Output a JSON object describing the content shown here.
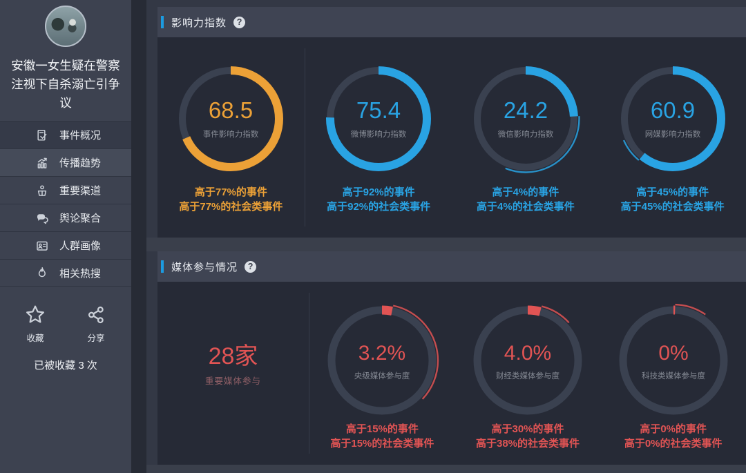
{
  "sidebar": {
    "event_title": "安徽一女生疑在警察注视下自杀溺亡引争议",
    "nav": [
      {
        "id": "event-overview",
        "label": "事件概况",
        "icon": "doc-edit-icon",
        "active": true,
        "hover": false
      },
      {
        "id": "spread-trend",
        "label": "传播趋势",
        "icon": "trend-chart-icon",
        "active": false,
        "hover": true
      },
      {
        "id": "key-channels",
        "label": "重要渠道",
        "icon": "podium-icon",
        "active": false,
        "hover": false
      },
      {
        "id": "opinion-cluster",
        "label": "舆论聚合",
        "icon": "speech-bubbles-icon",
        "active": false,
        "hover": false
      },
      {
        "id": "audience-profile",
        "label": "人群画像",
        "icon": "id-card-icon",
        "active": false,
        "hover": false
      },
      {
        "id": "related-hot-search",
        "label": "相关热搜",
        "icon": "flame-icon",
        "active": false,
        "hover": false
      }
    ],
    "actions": [
      {
        "id": "favorite",
        "label": "收藏",
        "icon": "star-icon"
      },
      {
        "id": "share",
        "label": "分享",
        "icon": "share-nodes-icon"
      }
    ],
    "favorite_count": "已被收藏 3 次"
  },
  "panels": [
    {
      "id": "influence-index",
      "title": "影响力指数",
      "help_glyph": "?"
    },
    {
      "id": "media-participation",
      "title": "媒体参与情况",
      "help_glyph": "?"
    }
  ],
  "colors": {
    "accent_blue": "#1c9be0",
    "gauge_orange": "#eca137",
    "gauge_blue": "#29a3e3",
    "gauge_red": "#e15454",
    "gauge_track": "#3a4150",
    "gauge_label": "#858a94"
  },
  "chart_data": [
    {
      "type": "gauge-ring",
      "panel": "影响力指数",
      "max": 100,
      "gauges": [
        {
          "id": "event-influence-index",
          "value": 68.5,
          "display": "68.5",
          "label": "事件影响力指数",
          "color": "#eca137",
          "decor_tail_deg": 0,
          "captions": [
            "高于77%的事件",
            "高于77%的社会类事件"
          ]
        },
        {
          "id": "weibo-influence-index",
          "value": 75.4,
          "display": "75.4",
          "label": "微博影响力指数",
          "color": "#29a3e3",
          "decor_tail_deg": 0,
          "captions": [
            "高于92%的事件",
            "高于92%的社会类事件"
          ]
        },
        {
          "id": "wechat-influence-index",
          "value": 24.2,
          "display": "24.2",
          "label": "微信影响力指数",
          "color": "#29a3e3",
          "decor_tail_deg": 115,
          "captions": [
            "高于4%的事件",
            "高于4%的社会类事件"
          ]
        },
        {
          "id": "webmedia-influence-index",
          "value": 60.9,
          "display": "60.9",
          "label": "网媒影响力指数",
          "color": "#29a3e3",
          "decor_tail_deg": 27,
          "captions": [
            "高于45%的事件",
            "高于45%的社会类事件"
          ]
        }
      ]
    },
    {
      "type": "gauge-ring",
      "panel": "媒体参与情况",
      "max": 100,
      "summary": {
        "value": "28家",
        "label": "重要媒体参与",
        "color": "#e15454"
      },
      "gauges": [
        {
          "id": "central-media-participation",
          "value": 3.2,
          "display": "3.2%",
          "label": "央级媒体参与度",
          "color": "#e15454",
          "decor_tail_deg": 122,
          "captions": [
            "高于15%的事件",
            "高于15%的社会类事件"
          ]
        },
        {
          "id": "finance-media-participation",
          "value": 4.0,
          "display": "4.0%",
          "label": "财经类媒体参与度",
          "color": "#e15454",
          "decor_tail_deg": 33,
          "captions": [
            "高于30%的事件",
            "高于38%的社会类事件"
          ]
        },
        {
          "id": "tech-media-participation",
          "value": 0,
          "display": "0%",
          "label": "科技类媒体参与度",
          "color": "#e15454",
          "decor_tail_deg": 33,
          "captions": [
            "高于0%的事件",
            "高于0%的社会类事件"
          ]
        }
      ]
    }
  ]
}
